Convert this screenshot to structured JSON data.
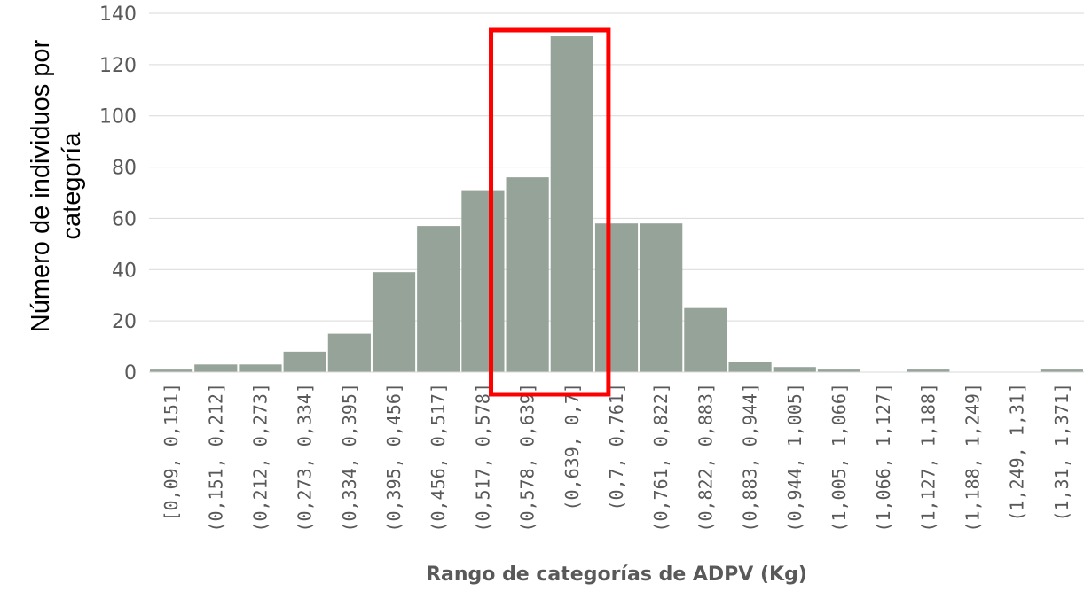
{
  "chart_data": {
    "type": "bar",
    "title": "",
    "ylabel": "Número de individuos por categoría",
    "ylabel_lines": [
      "Número de individuos por",
      "categoría"
    ],
    "xlabel": "Rango de categorías de ADPV (Kg)",
    "ylim": [
      0,
      140
    ],
    "yticks": [
      0,
      20,
      40,
      60,
      80,
      100,
      120,
      140
    ],
    "grid": true,
    "categories": [
      "[0,09, 0,151]",
      "(0,151, 0,212]",
      "(0,212, 0,273]",
      "(0,273, 0,334]",
      "(0,334, 0,395]",
      "(0,395, 0,456]",
      "(0,456, 0,517]",
      "(0,517, 0,578]",
      "(0,578, 0,639]",
      "(0,639, 0,7]",
      "(0,7, 0,761]",
      "(0,761, 0,822]",
      "(0,822, 0,883]",
      "(0,883, 0,944]",
      "(0,944, 1,005]",
      "(1,005, 1,066]",
      "(1,066, 1,127]",
      "(1,127, 1,188]",
      "(1,188, 1,249]",
      "(1,249, 1,31]",
      "(1,31, 1,371]"
    ],
    "values": [
      1,
      3,
      3,
      8,
      15,
      39,
      57,
      71,
      76,
      131,
      58,
      58,
      25,
      4,
      2,
      1,
      0,
      1,
      0,
      0,
      1
    ],
    "bar_color": "#95a399",
    "highlight": {
      "categories": [
        "(0,578, 0,639]",
        "(0,639, 0,7]"
      ],
      "color": "#ff0000"
    }
  }
}
